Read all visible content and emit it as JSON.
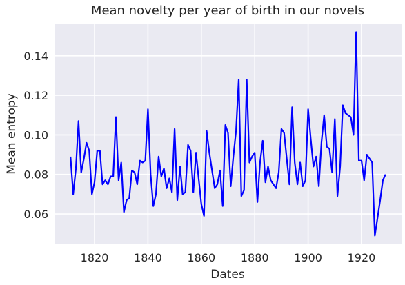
{
  "chart_data": {
    "type": "line",
    "title": "Mean novelty per year of birth in our novels",
    "xlabel": "Dates",
    "ylabel": "Mean entropy",
    "xlim": [
      1805,
      1935
    ],
    "ylim": [
      0.045,
      0.156
    ],
    "grid": true,
    "xticks": [
      1820,
      1840,
      1860,
      1880,
      1900,
      1920
    ],
    "yticks": [
      0.06,
      0.08,
      0.1,
      0.12,
      0.14
    ],
    "ytick_labels": [
      "0.06",
      "0.08",
      "0.10",
      "0.12",
      "0.14"
    ],
    "series": [
      {
        "color": "#0000ff",
        "x": [
          1811,
          1812,
          1813,
          1814,
          1815,
          1816,
          1817,
          1818,
          1819,
          1820,
          1821,
          1822,
          1823,
          1824,
          1825,
          1826,
          1827,
          1828,
          1829,
          1830,
          1831,
          1832,
          1833,
          1834,
          1835,
          1836,
          1837,
          1838,
          1839,
          1840,
          1841,
          1842,
          1843,
          1844,
          1845,
          1846,
          1847,
          1848,
          1849,
          1850,
          1851,
          1852,
          1853,
          1854,
          1855,
          1856,
          1857,
          1858,
          1859,
          1860,
          1861,
          1862,
          1863,
          1864,
          1865,
          1866,
          1867,
          1868,
          1869,
          1870,
          1871,
          1872,
          1873,
          1874,
          1875,
          1876,
          1877,
          1878,
          1879,
          1880,
          1881,
          1882,
          1883,
          1884,
          1885,
          1886,
          1887,
          1888,
          1889,
          1890,
          1891,
          1892,
          1893,
          1894,
          1895,
          1896,
          1897,
          1898,
          1899,
          1900,
          1901,
          1902,
          1903,
          1904,
          1905,
          1906,
          1907,
          1908,
          1909,
          1910,
          1911,
          1912,
          1913,
          1914,
          1915,
          1916,
          1917,
          1918,
          1919,
          1920,
          1921,
          1922,
          1923,
          1924,
          1925,
          1926,
          1927,
          1928,
          1929
        ],
        "y": [
          0.089,
          0.07,
          0.083,
          0.107,
          0.081,
          0.088,
          0.096,
          0.092,
          0.07,
          0.076,
          0.092,
          0.092,
          0.075,
          0.077,
          0.075,
          0.079,
          0.079,
          0.109,
          0.077,
          0.086,
          0.061,
          0.067,
          0.068,
          0.082,
          0.081,
          0.075,
          0.087,
          0.086,
          0.087,
          0.113,
          0.08,
          0.064,
          0.07,
          0.089,
          0.079,
          0.083,
          0.073,
          0.078,
          0.071,
          0.103,
          0.067,
          0.084,
          0.07,
          0.071,
          0.095,
          0.092,
          0.071,
          0.091,
          0.078,
          0.065,
          0.059,
          0.102,
          0.091,
          0.082,
          0.073,
          0.075,
          0.082,
          0.064,
          0.105,
          0.101,
          0.074,
          0.089,
          0.102,
          0.128,
          0.069,
          0.072,
          0.128,
          0.086,
          0.089,
          0.091,
          0.066,
          0.086,
          0.097,
          0.076,
          0.084,
          0.077,
          0.075,
          0.073,
          0.081,
          0.103,
          0.101,
          0.088,
          0.075,
          0.114,
          0.086,
          0.075,
          0.086,
          0.074,
          0.077,
          0.113,
          0.098,
          0.084,
          0.089,
          0.074,
          0.096,
          0.11,
          0.094,
          0.093,
          0.081,
          0.108,
          0.069,
          0.084,
          0.115,
          0.111,
          0.11,
          0.109,
          0.1,
          0.152,
          0.087,
          0.087,
          0.077,
          0.09,
          0.088,
          0.086,
          0.049,
          0.058,
          0.067,
          0.077,
          0.08
        ]
      }
    ]
  }
}
